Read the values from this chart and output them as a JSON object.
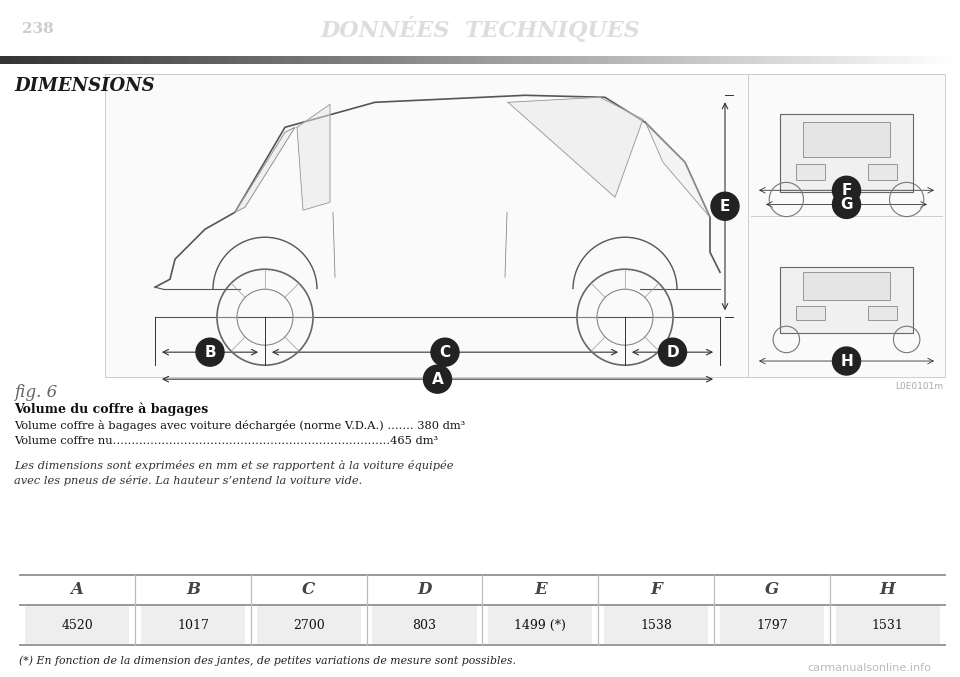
{
  "page_number": "238",
  "header_title": "DONNÉES  TECHNIQUES",
  "section_title": "DIMENSIONS",
  "fig_label": "fig. 6",
  "image_code": "L0E0101m",
  "table_headers": [
    "A",
    "B",
    "C",
    "D",
    "E",
    "F",
    "G",
    "H"
  ],
  "table_values": [
    "4520",
    "1017",
    "2700",
    "803",
    "1499 (*)",
    "1538",
    "1797",
    "1531"
  ],
  "footnote": "(*) En fonction de la dimension des jantes, de petites variations de mesure sont possibles.",
  "volume_title": "Volume du coffre à bagages",
  "volume_line1": "Volume coffre à bagages avec voiture déchargée (norme V.D.A.) ....... 380 dm³",
  "volume_line2": "Volume coffre nu..........................................................................465 dm³",
  "note_line1": "Les dimensions sont exprimées en mm et se rapportent à la voiture équipée",
  "note_line2": "avec les pneus de série. La hauteur s’entend la voiture vide.",
  "bg_color": "#ffffff",
  "header_bg": "#111111",
  "header_text_color": "#dddddd",
  "page_num_color": "#cccccc",
  "divider_left": "#555555",
  "divider_right": "#ffffff",
  "section_title_color": "#1a1a1a",
  "label_circle_color": "#222222",
  "label_text_color": "#ffffff",
  "arrow_color": "#333333",
  "car_line_color": "#555555",
  "box_bg": "#f5f5f5",
  "box_border": "#cccccc",
  "table_line_color": "#888888",
  "table_sep_color": "#bbbbbb",
  "table_header_color": "#444444",
  "table_value_bg": "#eeeeee",
  "table_value_color": "#111111",
  "body_text_color": "#111111",
  "italic_text_color": "#333333",
  "footnote_color": "#222222",
  "watermark_color": "#bbbbbb",
  "fig_label_color": "#666666"
}
